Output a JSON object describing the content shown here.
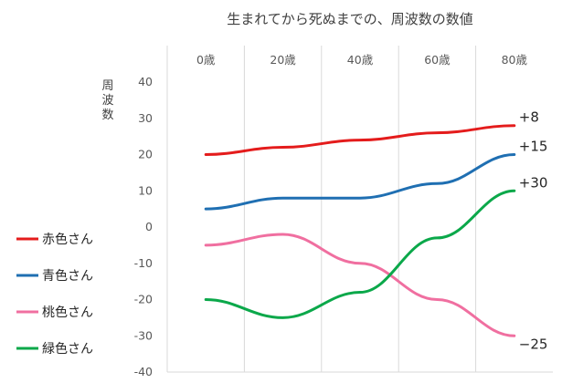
{
  "chart_data": {
    "type": "line",
    "title": "生まれてから死ぬまでの、周波数の数値",
    "xlabel": "",
    "ylabel": "周波数",
    "categories": [
      "0歳",
      "20歳",
      "40歳",
      "60歳",
      "80歳"
    ],
    "x": [
      0,
      20,
      40,
      60,
      80
    ],
    "xlim": [
      -10,
      90
    ],
    "ylim": [
      -40,
      40
    ],
    "yticks": [
      40,
      30,
      20,
      10,
      0,
      -10,
      -20,
      -30,
      -40
    ],
    "grid": "vertical",
    "x_axis_position": "top",
    "legend_position": "left",
    "series": [
      {
        "name": "赤色さん",
        "color": "#e41c1c",
        "values": [
          20,
          22,
          24,
          26,
          28
        ],
        "annotation": "+8"
      },
      {
        "name": "青色さん",
        "color": "#1f6fb2",
        "values": [
          5,
          8,
          8,
          12,
          20
        ],
        "annotation": "+15"
      },
      {
        "name": "桃色さん",
        "color": "#f06fa0",
        "values": [
          -5,
          -2,
          -10,
          -20,
          -30
        ],
        "annotation": "−25"
      },
      {
        "name": "緑色さん",
        "color": "#0ba84a",
        "values": [
          -20,
          -25,
          -18,
          -3,
          10
        ],
        "annotation": "+30"
      }
    ]
  }
}
